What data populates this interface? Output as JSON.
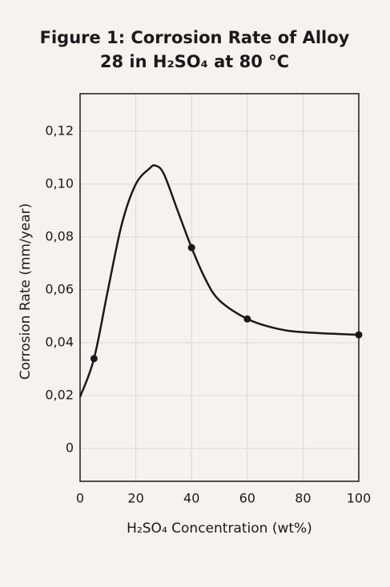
{
  "chart_data": {
    "type": "line",
    "title": [
      "Figure 1: Corrosion Rate of Alloy",
      "28 in H₂SO₄ at 80 °C"
    ],
    "xlabel": "H₂SO₄ Concentration (wt%)",
    "ylabel": "Corrosion Rate (mm/year)",
    "x": [
      0,
      5,
      10,
      15,
      20,
      25,
      27,
      30,
      35,
      40,
      45,
      50,
      60,
      70,
      80,
      100
    ],
    "values": [
      0.0195,
      0.034,
      0.06,
      0.085,
      0.1,
      0.106,
      0.107,
      0.104,
      0.09,
      0.076,
      0.064,
      0.056,
      0.049,
      0.0455,
      0.044,
      0.043
    ],
    "points": {
      "x": [
        5,
        40,
        60,
        100
      ],
      "values": [
        0.034,
        0.076,
        0.049,
        0.043
      ]
    },
    "color": "#1a1a1a",
    "xlim": [
      0,
      100
    ],
    "xticks": [
      0,
      20,
      40,
      60,
      80,
      100
    ],
    "ylim": [
      -0.0124,
      0.1342
    ],
    "yticks": [
      0,
      {
        "value": 0.02,
        "label": "0,02"
      },
      {
        "value": 0.04,
        "label": "0,04"
      },
      {
        "value": 0.06,
        "label": "0,06"
      },
      {
        "value": 0.08,
        "label": "0,08"
      },
      {
        "value": 0.1,
        "label": "0,10"
      },
      {
        "value": 0.12,
        "label": "0,12"
      }
    ],
    "grid": true
  }
}
